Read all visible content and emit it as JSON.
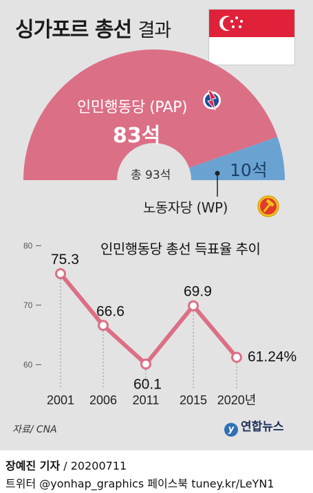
{
  "title": {
    "main": "싱가포르 총선",
    "suffix": "결과"
  },
  "colors": {
    "pap": "#db6f86",
    "wp": "#6aa3d2",
    "line": "#db6f86",
    "background": "#e3e3e3",
    "flag_red": "#e0213a"
  },
  "parliament": {
    "total_label": "총 93석",
    "parties": [
      {
        "name": "인민행동당 (PAP)",
        "seats_label": "83석",
        "seats": 83,
        "icon": "pap-lightning-logo-icon"
      },
      {
        "name": "노동자당 (WP)",
        "seats_label": "10석",
        "seats": 10,
        "icon": "wp-hammer-logo-icon"
      }
    ]
  },
  "chart_data": {
    "type": "line",
    "title": "인민행동당  총선 득표율 추이",
    "categories": [
      "2001",
      "2006",
      "2011",
      "2015",
      "2020년"
    ],
    "values": [
      75.3,
      66.6,
      60.1,
      69.9,
      61.24
    ],
    "value_labels": [
      "75.3",
      "66.6",
      "60.1",
      "69.9",
      "61.24%"
    ],
    "y_ticks": [
      "80",
      "70",
      "60"
    ],
    "ylim": [
      56,
      82
    ]
  },
  "footer": {
    "source": "자료/ CNA",
    "brand": "연합뉴스",
    "brand_logo": "y",
    "reporter": "장예진 기자",
    "date": " / 20200711",
    "social": "트위터 @yonhap_graphics  페이스북 tuney.kr/LeYN1"
  }
}
